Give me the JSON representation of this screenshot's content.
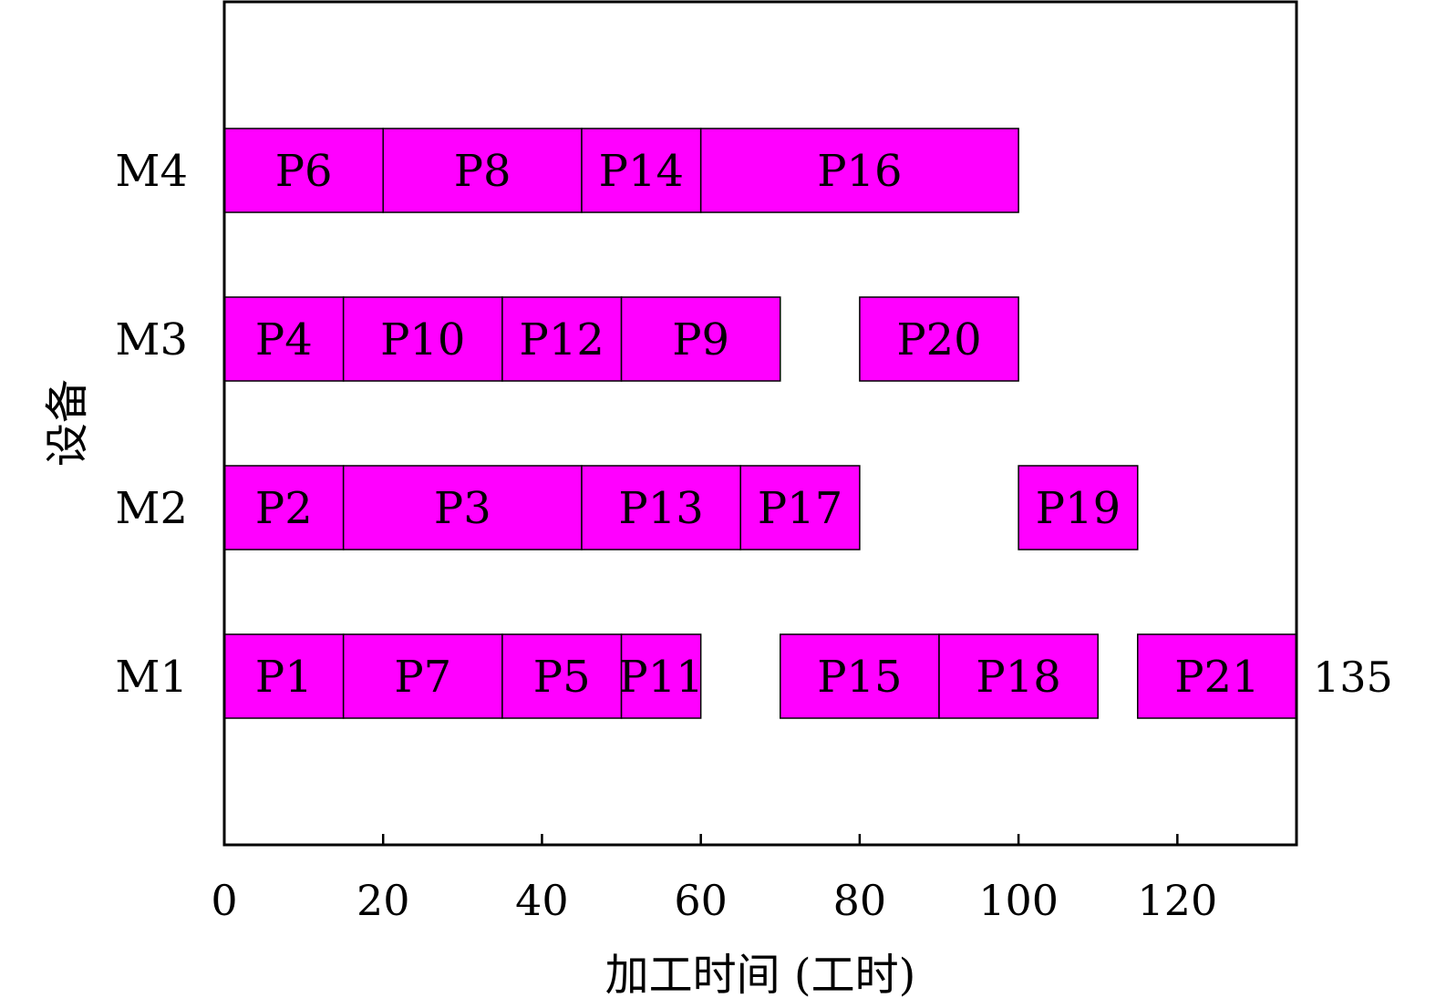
{
  "chart_data": {
    "type": "gantt",
    "xlabel": "加工时间 (工时)",
    "ylabel": "设备",
    "xlim": [
      0,
      135
    ],
    "xticks": [
      0,
      20,
      40,
      60,
      80,
      100,
      120
    ],
    "machines": [
      "M1",
      "M2",
      "M3",
      "M4"
    ],
    "bar_color": "#ff00ff",
    "tasks": [
      {
        "machine": "M1",
        "label": "P1",
        "start": 0,
        "end": 15
      },
      {
        "machine": "M1",
        "label": "P7",
        "start": 15,
        "end": 35
      },
      {
        "machine": "M1",
        "label": "P5",
        "start": 35,
        "end": 50
      },
      {
        "machine": "M1",
        "label": "P11",
        "start": 50,
        "end": 60
      },
      {
        "machine": "M1",
        "label": "P15",
        "start": 70,
        "end": 90
      },
      {
        "machine": "M1",
        "label": "P18",
        "start": 90,
        "end": 110
      },
      {
        "machine": "M1",
        "label": "P21",
        "start": 115,
        "end": 135
      },
      {
        "machine": "M2",
        "label": "P2",
        "start": 0,
        "end": 15
      },
      {
        "machine": "M2",
        "label": "P3",
        "start": 15,
        "end": 45
      },
      {
        "machine": "M2",
        "label": "P13",
        "start": 45,
        "end": 65
      },
      {
        "machine": "M2",
        "label": "P17",
        "start": 65,
        "end": 80
      },
      {
        "machine": "M2",
        "label": "P19",
        "start": 100,
        "end": 115
      },
      {
        "machine": "M3",
        "label": "P4",
        "start": 0,
        "end": 15
      },
      {
        "machine": "M3",
        "label": "P10",
        "start": 15,
        "end": 35
      },
      {
        "machine": "M3",
        "label": "P12",
        "start": 35,
        "end": 50
      },
      {
        "machine": "M3",
        "label": "P9",
        "start": 50,
        "end": 70
      },
      {
        "machine": "M3",
        "label": "P20",
        "start": 80,
        "end": 100
      },
      {
        "machine": "M4",
        "label": "P6",
        "start": 0,
        "end": 20
      },
      {
        "machine": "M4",
        "label": "P8",
        "start": 20,
        "end": 45
      },
      {
        "machine": "M4",
        "label": "P14",
        "start": 45,
        "end": 60
      },
      {
        "machine": "M4",
        "label": "P16",
        "start": 60,
        "end": 100
      }
    ],
    "annotations": [
      {
        "text": "135",
        "x": 135,
        "machine": "M1"
      }
    ]
  }
}
